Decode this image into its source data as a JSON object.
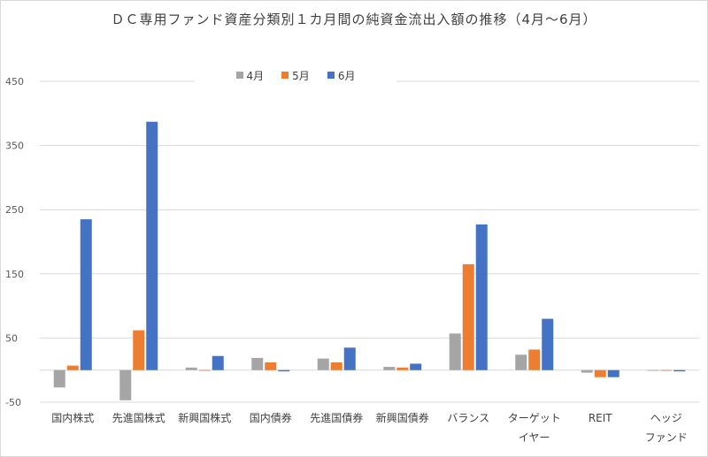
{
  "chart_data": {
    "type": "bar",
    "title": "ＤＣ専用ファンド資産分類別１カ月間の純資金流出入額の推移（4月～6月）",
    "categories": [
      [
        "国内株式"
      ],
      [
        "先進国株式"
      ],
      [
        "新興国株式"
      ],
      [
        "国内債券"
      ],
      [
        "先進国債券"
      ],
      [
        "新興国債券"
      ],
      [
        "バランス"
      ],
      [
        "ターゲット",
        "イヤー"
      ],
      [
        "REIT"
      ],
      [
        "ヘッジ",
        "ファンド"
      ]
    ],
    "series": [
      {
        "name": "4月",
        "color": "#a5a5a5",
        "values": [
          -27,
          -47,
          4,
          19,
          18,
          5,
          57,
          24,
          -4,
          0
        ]
      },
      {
        "name": "5月",
        "color": "#ed7d31",
        "values": [
          7,
          62,
          0,
          12,
          12,
          4,
          165,
          32,
          -11,
          0
        ]
      },
      {
        "name": "6月",
        "color": "#4472c4",
        "values": [
          235,
          387,
          22,
          -2,
          35,
          10,
          227,
          80,
          -11,
          -2
        ]
      }
    ],
    "yticks": [
      "450",
      "350",
      "250",
      "150",
      "50",
      "-50"
    ],
    "ylim": [
      -50,
      450
    ],
    "xlabel": "",
    "ylabel": "",
    "legend_position": "top",
    "grid": true
  }
}
